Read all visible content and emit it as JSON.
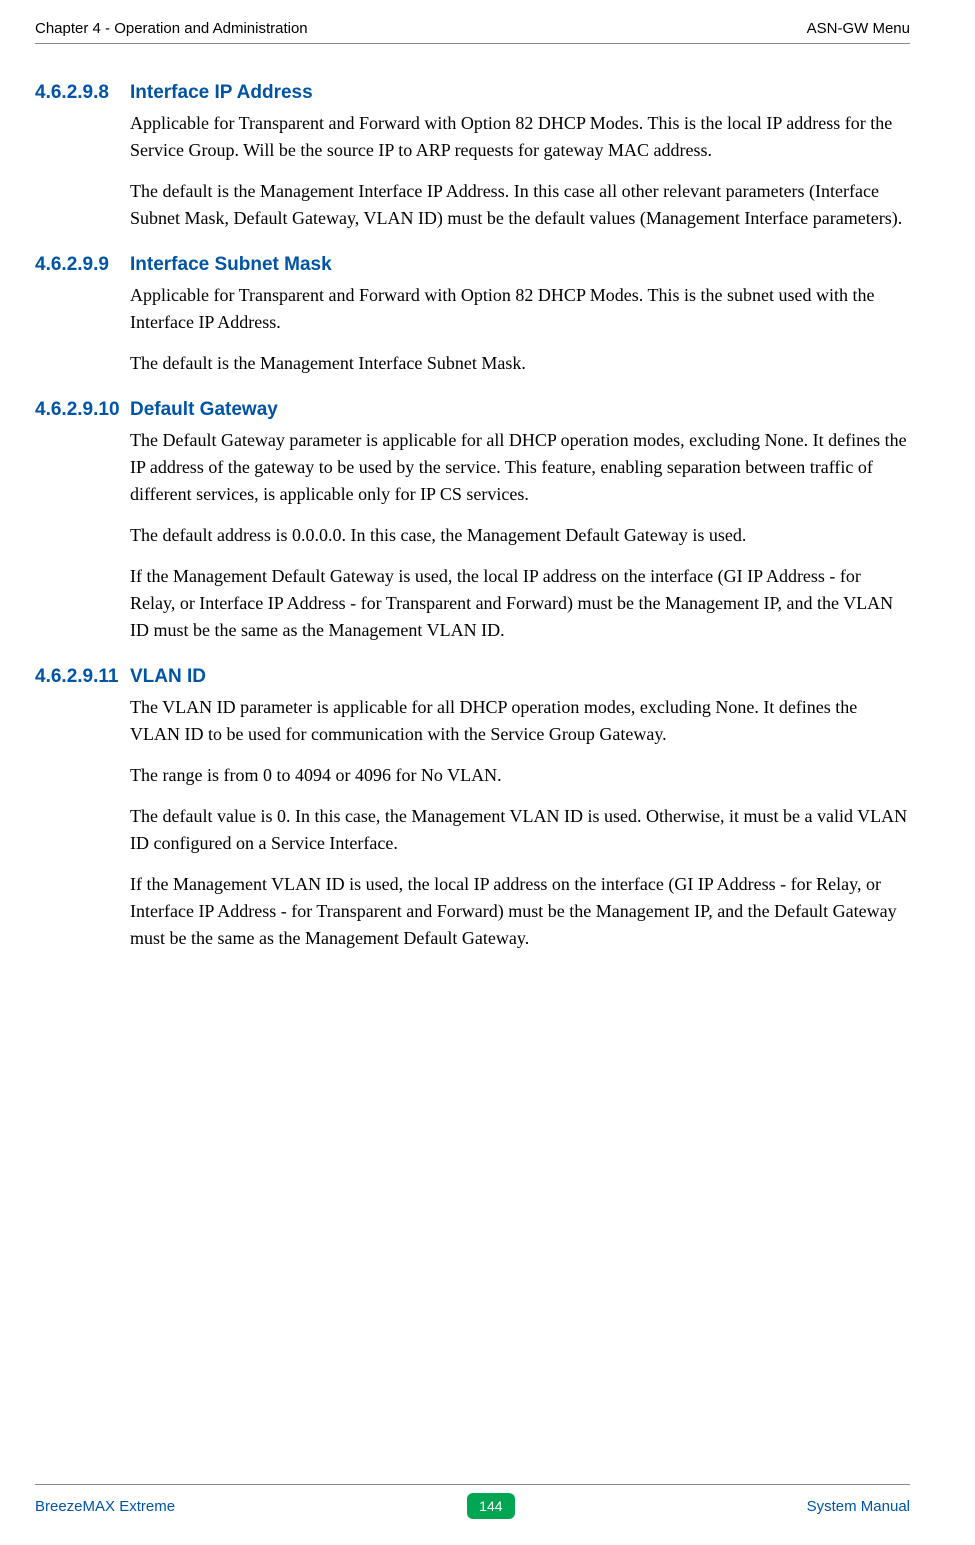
{
  "header": {
    "left": "Chapter 4 - Operation and Administration",
    "right": "ASN-GW Menu"
  },
  "sections": [
    {
      "number": "4.6.2.9.8",
      "title": "Interface IP Address",
      "paragraphs": [
        "Applicable for Transparent and Forward with Option 82 DHCP Modes. This is the local IP address for the Service Group. Will be the source IP to ARP requests for gateway MAC address.",
        "The default is the Management Interface IP Address. In this case all other relevant parameters (Interface Subnet Mask, Default Gateway, VLAN ID) must be the default values (Management Interface parameters)."
      ]
    },
    {
      "number": "4.6.2.9.9",
      "title": "Interface Subnet Mask",
      "paragraphs": [
        "Applicable for Transparent and Forward with Option 82 DHCP Modes. This is the subnet used with the Interface IP Address.",
        "The default is the Management Interface Subnet Mask."
      ]
    },
    {
      "number": "4.6.2.9.10",
      "title": "Default Gateway",
      "paragraphs": [
        "The Default Gateway parameter is applicable for all DHCP operation modes, excluding None. It defines the IP address of the gateway to be used by the service. This feature, enabling separation between traffic of different services, is applicable only for IP CS services.",
        "The default address is 0.0.0.0. In this case, the Management Default Gateway is used.",
        "If the Management Default Gateway is used, the local IP address on the interface (GI IP Address - for Relay, or Interface IP Address - for Transparent and Forward) must be the Management IP, and the VLAN ID must be the same as the Management VLAN ID."
      ]
    },
    {
      "number": "4.6.2.9.11",
      "title": "VLAN ID",
      "paragraphs": [
        "The VLAN ID parameter is applicable for all DHCP operation modes, excluding None. It defines the VLAN ID to be used for communication with the Service Group Gateway.",
        "The range is from 0 to 4094 or 4096 for No VLAN.",
        "The default value is 0. In this case, the Management VLAN ID is used. Otherwise, it must be a valid VLAN ID configured on a Service Interface.",
        "If the Management VLAN ID is used, the local IP address on the interface (GI IP Address - for Relay, or Interface IP Address - for Transparent and Forward) must be the Management IP, and the Default Gateway must be the same as the Management Default Gateway."
      ]
    }
  ],
  "footer": {
    "left": "BreezeMAX Extreme",
    "page": "144",
    "right": "System Manual"
  },
  "colors": {
    "heading_blue": "#0054a6",
    "badge_green": "#00a651",
    "text_black": "#000000",
    "rule_gray": "#888888",
    "background": "#ffffff"
  },
  "typography": {
    "heading_font": "Arial",
    "heading_size_pt": 14,
    "body_font": "Palatino",
    "body_size_pt": 13,
    "header_footer_size_pt": 11
  }
}
